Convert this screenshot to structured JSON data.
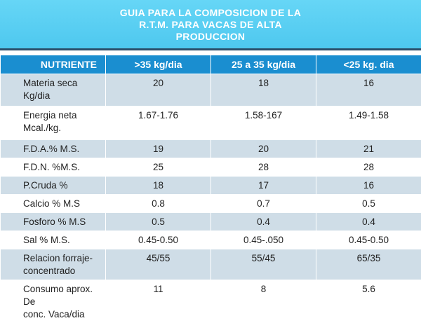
{
  "title": {
    "line1": "GUIA PARA LA COMPOSICION DE LA",
    "line2": "R.T.M. PARA VACAS DE ALTA",
    "line3": "PRODUCCION"
  },
  "table": {
    "headers": [
      "NUTRIENTE",
      ">35 kg/dia",
      "25 a 35 kg/dia",
      "<25 kg. dia"
    ],
    "rows": [
      {
        "nutrient": [
          "Materia seca",
          "Kg/dia"
        ],
        "v1": "20",
        "v2": "18",
        "v3": "16"
      },
      {
        "nutrient": [
          "Energia neta",
          "Mcal./kg."
        ],
        "v1": "1.67-1.76",
        "v2": "1.58-167",
        "v3": "1.49-1.58"
      },
      {
        "nutrient": [
          "F.D.A.% M.S."
        ],
        "v1": "19",
        "v2": "20",
        "v3": "21"
      },
      {
        "nutrient": [
          "F.D.N. %M.S."
        ],
        "v1": "25",
        "v2": "28",
        "v3": "28"
      },
      {
        "nutrient": [
          "P.Cruda %"
        ],
        "v1": "18",
        "v2": "17",
        "v3": "16"
      },
      {
        "nutrient": [
          "Calcio % M.S"
        ],
        "v1": "0.8",
        "v2": "0.7",
        "v3": "0.5"
      },
      {
        "nutrient": [
          "Fosforo % M.S"
        ],
        "v1": "0.5",
        "v2": "0.4",
        "v3": "0.4"
      },
      {
        "nutrient": [
          "Sal % M.S."
        ],
        "v1": "0.45-0.50",
        "v2": "0.45-.050",
        "v3": "0.45-0.50"
      },
      {
        "nutrient": [
          "Relacion forraje-",
          "concentrado"
        ],
        "v1": "45/55",
        "v2": "55/45",
        "v3": "65/35"
      },
      {
        "nutrient": [
          "Consumo aprox. De",
          "conc. Vaca/dia"
        ],
        "v1": "11",
        "v2": "8",
        "v3": "5.6"
      }
    ]
  },
  "colors": {
    "title_bg": "#55ccf1",
    "header_bg": "#1a8ed0",
    "band_bg": "#cfdde7",
    "plain_bg": "#ffffff"
  }
}
